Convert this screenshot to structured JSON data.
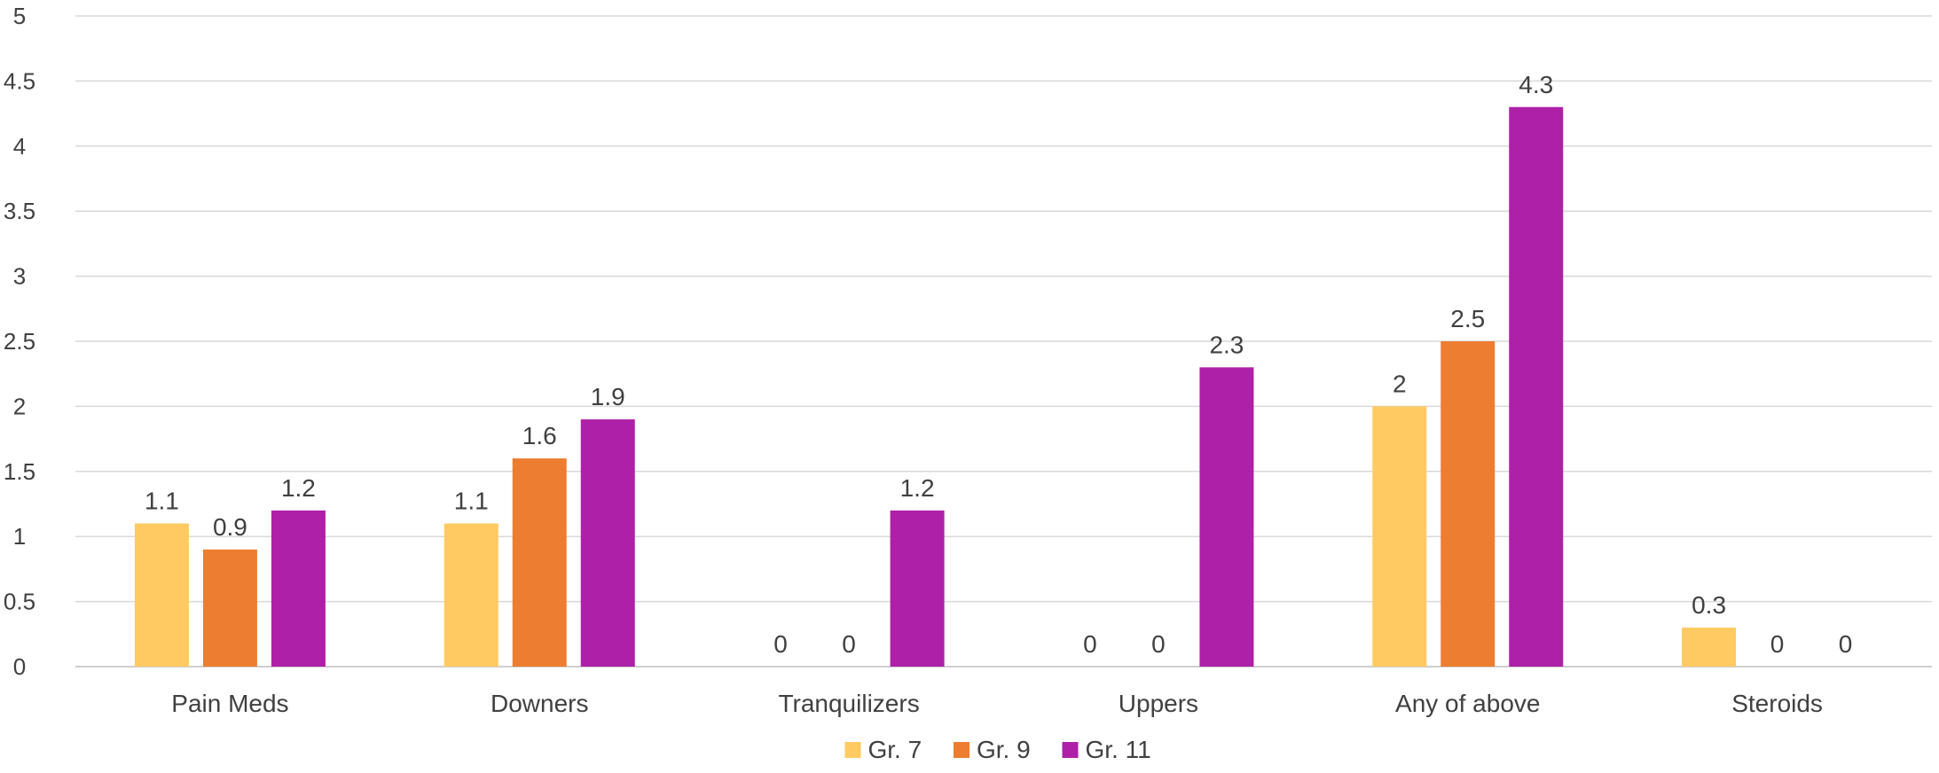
{
  "chart_data": {
    "type": "bar",
    "title": "",
    "xlabel": "",
    "ylabel": "",
    "ylim": [
      0,
      5
    ],
    "y_ticks": [
      "0",
      "0.5",
      "1",
      "1.5",
      "2",
      "2.5",
      "3",
      "3.5",
      "4",
      "4.5",
      "5"
    ],
    "grid": true,
    "legend_position": "bottom",
    "categories": [
      "Pain Meds",
      "Downers",
      "Tranquilizers",
      "Uppers",
      "Any of above",
      "Steroids"
    ],
    "series": [
      {
        "name": "Gr. 7",
        "color": "#FFCA62",
        "values": [
          1.1,
          1.1,
          0,
          0,
          2,
          0.3
        ]
      },
      {
        "name": "Gr. 9",
        "color": "#ED7D31",
        "values": [
          0.9,
          1.6,
          0,
          0,
          2.5,
          0
        ]
      },
      {
        "name": "Gr. 11",
        "color": "#AE20A8",
        "values": [
          1.2,
          1.9,
          1.2,
          2.3,
          4.3,
          0
        ]
      }
    ],
    "data_labels": [
      [
        "1.1",
        "1.1",
        "0",
        "0",
        "2",
        "0.3"
      ],
      [
        "0.9",
        "1.6",
        "0",
        "0",
        "2.5",
        "0"
      ],
      [
        "1.2",
        "1.9",
        "1.2",
        "2.3",
        "4.3",
        "0"
      ]
    ]
  }
}
